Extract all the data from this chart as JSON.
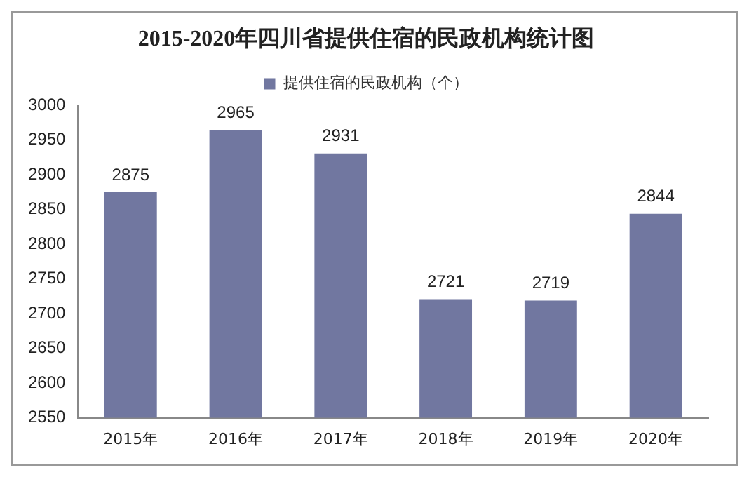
{
  "chart_data": {
    "type": "bar",
    "title": "2015-2020年四川省提供住宿的民政机构统计图",
    "categories": [
      "2015年",
      "2016年",
      "2017年",
      "2018年",
      "2019年",
      "2020年"
    ],
    "series": [
      {
        "name": "提供住宿的民政机构（个）",
        "color": "#7177a0",
        "values": [
          2875,
          2965,
          2931,
          2721,
          2719,
          2844
        ]
      }
    ],
    "ylim": [
      2550,
      3000
    ],
    "yticks": [
      2550,
      2600,
      2650,
      2700,
      2750,
      2800,
      2850,
      2900,
      2950,
      3000
    ],
    "grid": false,
    "legend": "top",
    "data_labels": true
  }
}
